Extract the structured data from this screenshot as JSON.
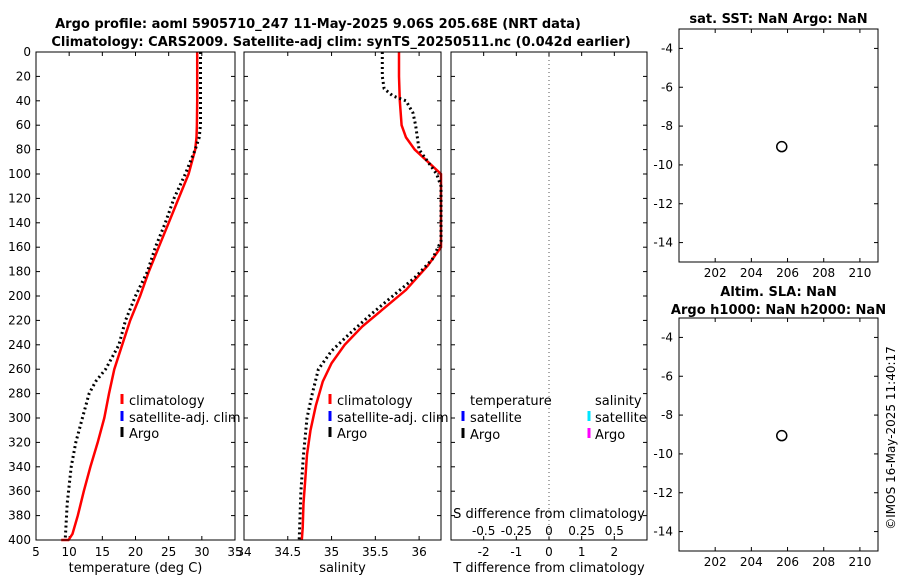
{
  "title_line1": "Argo profile: aoml 5905710_247 11-May-2025 9.06S 205.68E (NRT data)",
  "title_line2": "Climatology: CARS2009. Satellite-adj clim: synTS_20250511.nc (0.042d earlier)",
  "timestamp": "©IMOS 16-May-2025 11:40:17",
  "colors": {
    "climatology": "#ff0000",
    "satellite": "#0000ff",
    "argo": "#000000",
    "satellite_s": "#00e5ff",
    "argo_s": "#ff00ff"
  },
  "chart_data": [
    {
      "id": "temperature",
      "type": "line",
      "xlabel": "temperature (deg C)",
      "xlim": [
        5,
        35
      ],
      "ylim": [
        0,
        400
      ],
      "y_reversed": true,
      "xticks": [
        5,
        10,
        15,
        20,
        25,
        30,
        35
      ],
      "yticks": [
        0,
        20,
        40,
        60,
        80,
        100,
        120,
        140,
        160,
        180,
        200,
        220,
        240,
        260,
        280,
        300,
        320,
        340,
        360,
        380,
        400
      ],
      "legend": [
        "climatology",
        "satellite-adj. clim",
        "Argo"
      ],
      "series": [
        {
          "name": "climatology",
          "style": "solid",
          "x": [
            29.3,
            29.3,
            29.3,
            29.25,
            29.2,
            29.0,
            28.0,
            26.5,
            25.0,
            23.5,
            22.0,
            20.7,
            19.2,
            18.0,
            16.8,
            16.0,
            15.3,
            14.3,
            13.2,
            12.2,
            11.3,
            10.5,
            9.9,
            9.2,
            8.8
          ],
          "y": [
            0,
            20,
            40,
            60,
            70,
            80,
            100,
            120,
            140,
            160,
            180,
            200,
            220,
            240,
            260,
            280,
            300,
            320,
            340,
            360,
            380,
            395,
            400,
            400,
            400
          ]
        },
        {
          "name": "Argo",
          "style": "dotted",
          "x": [
            29.8,
            29.8,
            29.8,
            29.8,
            29.6,
            29.0,
            27.5,
            25.8,
            24.5,
            23.0,
            21.8,
            20.0,
            18.5,
            17.5,
            16.5,
            15.5,
            14.0,
            13.0,
            12.0,
            11.0,
            10.3,
            9.7,
            9.4
          ],
          "y": [
            0,
            20,
            40,
            60,
            70,
            80,
            100,
            120,
            140,
            160,
            180,
            200,
            220,
            240,
            250,
            260,
            270,
            280,
            300,
            320,
            340,
            370,
            400
          ]
        }
      ]
    },
    {
      "id": "salinity",
      "type": "line",
      "xlabel": "salinity",
      "xlim": [
        34.0,
        36.25
      ],
      "ylim": [
        0,
        400
      ],
      "y_reversed": true,
      "xticks": [
        34,
        34.5,
        35,
        35.5,
        36
      ],
      "tick_labels": [
        "34",
        "34.5",
        "35",
        "35.5",
        "36"
      ],
      "legend": [
        "climatology",
        "satellite-adj. clim",
        "Argo"
      ],
      "series": [
        {
          "name": "climatology",
          "style": "solid",
          "x": [
            35.77,
            35.77,
            35.78,
            35.8,
            35.85,
            35.95,
            36.1,
            36.25,
            36.25,
            36.25,
            36.1,
            35.85,
            35.6,
            35.35,
            35.15,
            35.0,
            34.9,
            34.82,
            34.76,
            34.72,
            34.7,
            34.68,
            34.67,
            34.66
          ],
          "y": [
            0,
            20,
            40,
            60,
            70,
            80,
            90,
            100,
            120,
            160,
            175,
            195,
            210,
            225,
            240,
            255,
            270,
            290,
            310,
            330,
            350,
            370,
            390,
            400
          ]
        },
        {
          "name": "Argo",
          "style": "dotted",
          "x": [
            35.58,
            35.58,
            35.6,
            35.7,
            35.85,
            35.93,
            35.96,
            36.0,
            36.1,
            36.2,
            36.25,
            36.25,
            36.25,
            36.15,
            35.95,
            35.7,
            35.45,
            35.22,
            35.0,
            34.85,
            34.78,
            34.72,
            34.68,
            34.65,
            34.63
          ],
          "y": [
            0,
            20,
            30,
            36,
            40,
            50,
            60,
            80,
            90,
            100,
            110,
            140,
            155,
            170,
            185,
            200,
            215,
            230,
            245,
            260,
            280,
            300,
            330,
            360,
            400
          ]
        }
      ]
    },
    {
      "id": "difference",
      "type": "line",
      "xlabel": "T difference from climatology",
      "xlabel_top": "S difference from climatology",
      "xlim": [
        -3,
        3
      ],
      "ylim": [
        0,
        400
      ],
      "y_reversed": true,
      "xticks": [
        -2,
        -1,
        0,
        1,
        2
      ],
      "s_xticks": [
        "-0.5",
        "-0.25",
        "0",
        "0.25",
        "0.5"
      ],
      "legend_temperature": {
        "heading": "temperature",
        "items": [
          "satellite",
          "Argo"
        ]
      },
      "legend_salinity": {
        "heading": "salinity",
        "items": [
          "satellite",
          "Argo"
        ]
      }
    },
    {
      "id": "sst_map",
      "type": "scatter",
      "title": "sat. SST: NaN Argo: NaN",
      "xlim": [
        200,
        211
      ],
      "ylim": [
        -15,
        -3
      ],
      "xticks": [
        202,
        204,
        206,
        208,
        210
      ],
      "yticks": [
        -4,
        -6,
        -8,
        -10,
        -12,
        -14
      ],
      "points": [
        {
          "x": 205.68,
          "y": -9.06
        }
      ]
    },
    {
      "id": "sla_map",
      "type": "scatter",
      "title_line1": "Altim. SLA: NaN",
      "title_line2": "Argo h1000: NaN h2000: NaN",
      "xlim": [
        200,
        211
      ],
      "ylim": [
        -15,
        -3
      ],
      "xticks": [
        202,
        204,
        206,
        208,
        210
      ],
      "yticks": [
        -4,
        -6,
        -8,
        -10,
        -12,
        -14
      ],
      "points": [
        {
          "x": 205.68,
          "y": -9.06
        }
      ]
    }
  ]
}
